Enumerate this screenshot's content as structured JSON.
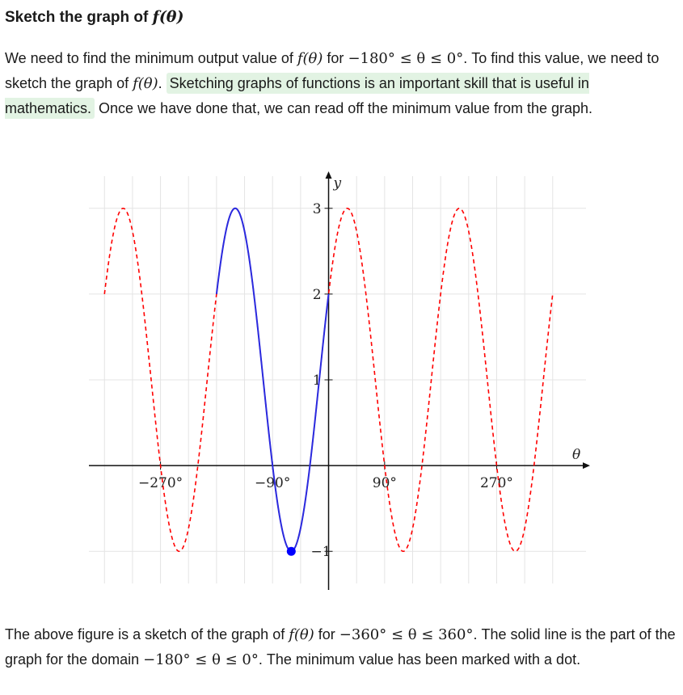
{
  "title": {
    "text": "Sketch the graph of ",
    "math": "f(θ)"
  },
  "intro": {
    "t1": "We need to find the minimum output value of ",
    "m1": "f(θ)",
    "t2": " for ",
    "m2": "−180° ≤ θ ≤ 0°",
    "t3": ". To find this value, we need to sketch the graph of ",
    "m3": "f(θ)",
    "t4": ". ",
    "highlight": "Sketching graphs of functions is an important skill that is useful in mathematics.",
    "t5": " Once we have done that, we can read off the minimum value from the graph."
  },
  "caption": {
    "t1": "The above figure is a sketch of the graph of ",
    "m1": "f(θ)",
    "t2": " for ",
    "m2": "−360° ≤ θ ≤ 360°",
    "t3": ". The solid line is the part of the graph for the domain ",
    "m3": "−180° ≤ θ ≤ 0°",
    "t4": ". The minimum value has been marked with a dot."
  },
  "chart_data": {
    "type": "line",
    "xlabel": "θ",
    "ylabel": "y",
    "xlim": [
      -385,
      420
    ],
    "ylim": [
      -1.45,
      3.45
    ],
    "x_ticks": [
      {
        "value": -270,
        "label": "−270°"
      },
      {
        "value": -90,
        "label": "−90°"
      },
      {
        "value": 90,
        "label": "90°"
      },
      {
        "value": 270,
        "label": "270°"
      }
    ],
    "y_ticks": [
      {
        "value": -1,
        "label": "−1"
      },
      {
        "value": 1,
        "label": "1"
      },
      {
        "value": 2,
        "label": "2"
      },
      {
        "value": 3,
        "label": "3"
      }
    ],
    "grid": true,
    "function": {
      "amplitude": 2,
      "angular_frequency": 2,
      "phase_deg": 30,
      "vertical_shift": 1
    },
    "series": [
      {
        "style": "dashed",
        "color": "#ff0000",
        "domain": [
          -360,
          360
        ]
      },
      {
        "style": "solid",
        "color": "#2a2adf",
        "domain": [
          -180,
          0
        ]
      }
    ],
    "minimum_point": {
      "x": -60,
      "y": -1,
      "color": "#0000ff"
    }
  }
}
